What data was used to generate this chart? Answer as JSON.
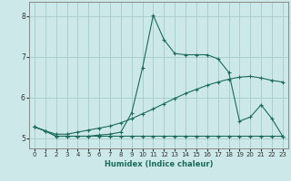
{
  "xlabel": "Humidex (Indice chaleur)",
  "xlim": [
    -0.5,
    23.5
  ],
  "ylim": [
    4.75,
    8.35
  ],
  "yticks": [
    5,
    6,
    7,
    8
  ],
  "xticks": [
    0,
    1,
    2,
    3,
    4,
    5,
    6,
    7,
    8,
    9,
    10,
    11,
    12,
    13,
    14,
    15,
    16,
    17,
    18,
    19,
    20,
    21,
    22,
    23
  ],
  "background_color": "#cde8e8",
  "grid_color": "#aacece",
  "line_color": "#1a6b5a",
  "line1_x": [
    0,
    1,
    2,
    3,
    4,
    5,
    6,
    7,
    8,
    9,
    10,
    11,
    12,
    13,
    14,
    15,
    16,
    17,
    18,
    19,
    20,
    21,
    22,
    23
  ],
  "line1_y": [
    5.28,
    5.18,
    5.05,
    5.05,
    5.05,
    5.05,
    5.05,
    5.05,
    5.05,
    5.05,
    5.05,
    5.05,
    5.05,
    5.05,
    5.05,
    5.05,
    5.05,
    5.05,
    5.05,
    5.05,
    5.05,
    5.05,
    5.05,
    5.05
  ],
  "line2_x": [
    0,
    1,
    2,
    3,
    4,
    5,
    6,
    7,
    8,
    9,
    10,
    11,
    12,
    13,
    14,
    15,
    16,
    17,
    18,
    19,
    20,
    21,
    22,
    23
  ],
  "line2_y": [
    5.28,
    5.18,
    5.1,
    5.1,
    5.15,
    5.2,
    5.25,
    5.3,
    5.38,
    5.48,
    5.6,
    5.72,
    5.85,
    5.98,
    6.1,
    6.2,
    6.3,
    6.38,
    6.45,
    6.5,
    6.52,
    6.48,
    6.42,
    6.38
  ],
  "line3_x": [
    0,
    1,
    2,
    3,
    4,
    5,
    6,
    7,
    8,
    9,
    10,
    11,
    12,
    13,
    14,
    15,
    16,
    17,
    18,
    19,
    20,
    21,
    22,
    23
  ],
  "line3_y": [
    5.28,
    5.18,
    5.05,
    5.05,
    5.05,
    5.05,
    5.08,
    5.1,
    5.15,
    5.62,
    6.72,
    8.02,
    7.42,
    7.08,
    7.05,
    7.05,
    7.05,
    6.95,
    6.62,
    5.42,
    5.52,
    5.82,
    5.48,
    5.05
  ]
}
